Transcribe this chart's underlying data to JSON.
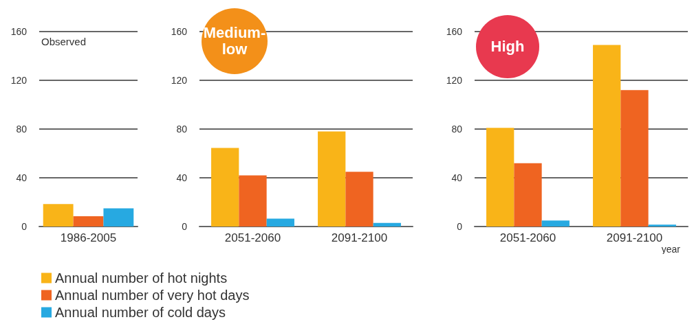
{
  "chart_data": [
    {
      "type": "bar",
      "title": "Observed",
      "categories": [
        "1986-2005"
      ],
      "ylim": [
        0,
        160
      ],
      "yticks": [
        0,
        40,
        80,
        120,
        160
      ],
      "grid": "y",
      "legend": "bottom",
      "series": [
        {
          "name": "Annual number of hot nights",
          "color": "#f9b418",
          "values": [
            18.5
          ]
        },
        {
          "name": "Annual number of very hot days",
          "color": "#ef6421",
          "values": [
            8.5
          ]
        },
        {
          "name": "Annual number of cold days",
          "color": "#27a9e1",
          "values": [
            15
          ]
        }
      ]
    },
    {
      "type": "bar",
      "title": "Medium-low",
      "categories": [
        "2051-2060",
        "2091-2100"
      ],
      "ylim": [
        0,
        160
      ],
      "yticks": [
        0,
        40,
        80,
        120,
        160
      ],
      "grid": "y",
      "series": [
        {
          "color": "#f9b418",
          "values": [
            64.5,
            78
          ]
        },
        {
          "color": "#ef6421",
          "values": [
            42,
            45
          ]
        },
        {
          "color": "#27a9e1",
          "values": [
            6.5,
            3
          ]
        }
      ]
    },
    {
      "type": "bar",
      "title": "High",
      "xlabel": "year",
      "categories": [
        "2051-2060",
        "2091-2100"
      ],
      "ylim": [
        0,
        160
      ],
      "yticks": [
        0,
        40,
        80,
        120,
        160
      ],
      "grid": "y",
      "series": [
        {
          "color": "#f9b418",
          "values": [
            81,
            149
          ]
        },
        {
          "color": "#ef6421",
          "values": [
            52,
            112
          ]
        },
        {
          "color": "#27a9e1",
          "values": [
            5,
            1.5
          ]
        }
      ]
    }
  ]
}
